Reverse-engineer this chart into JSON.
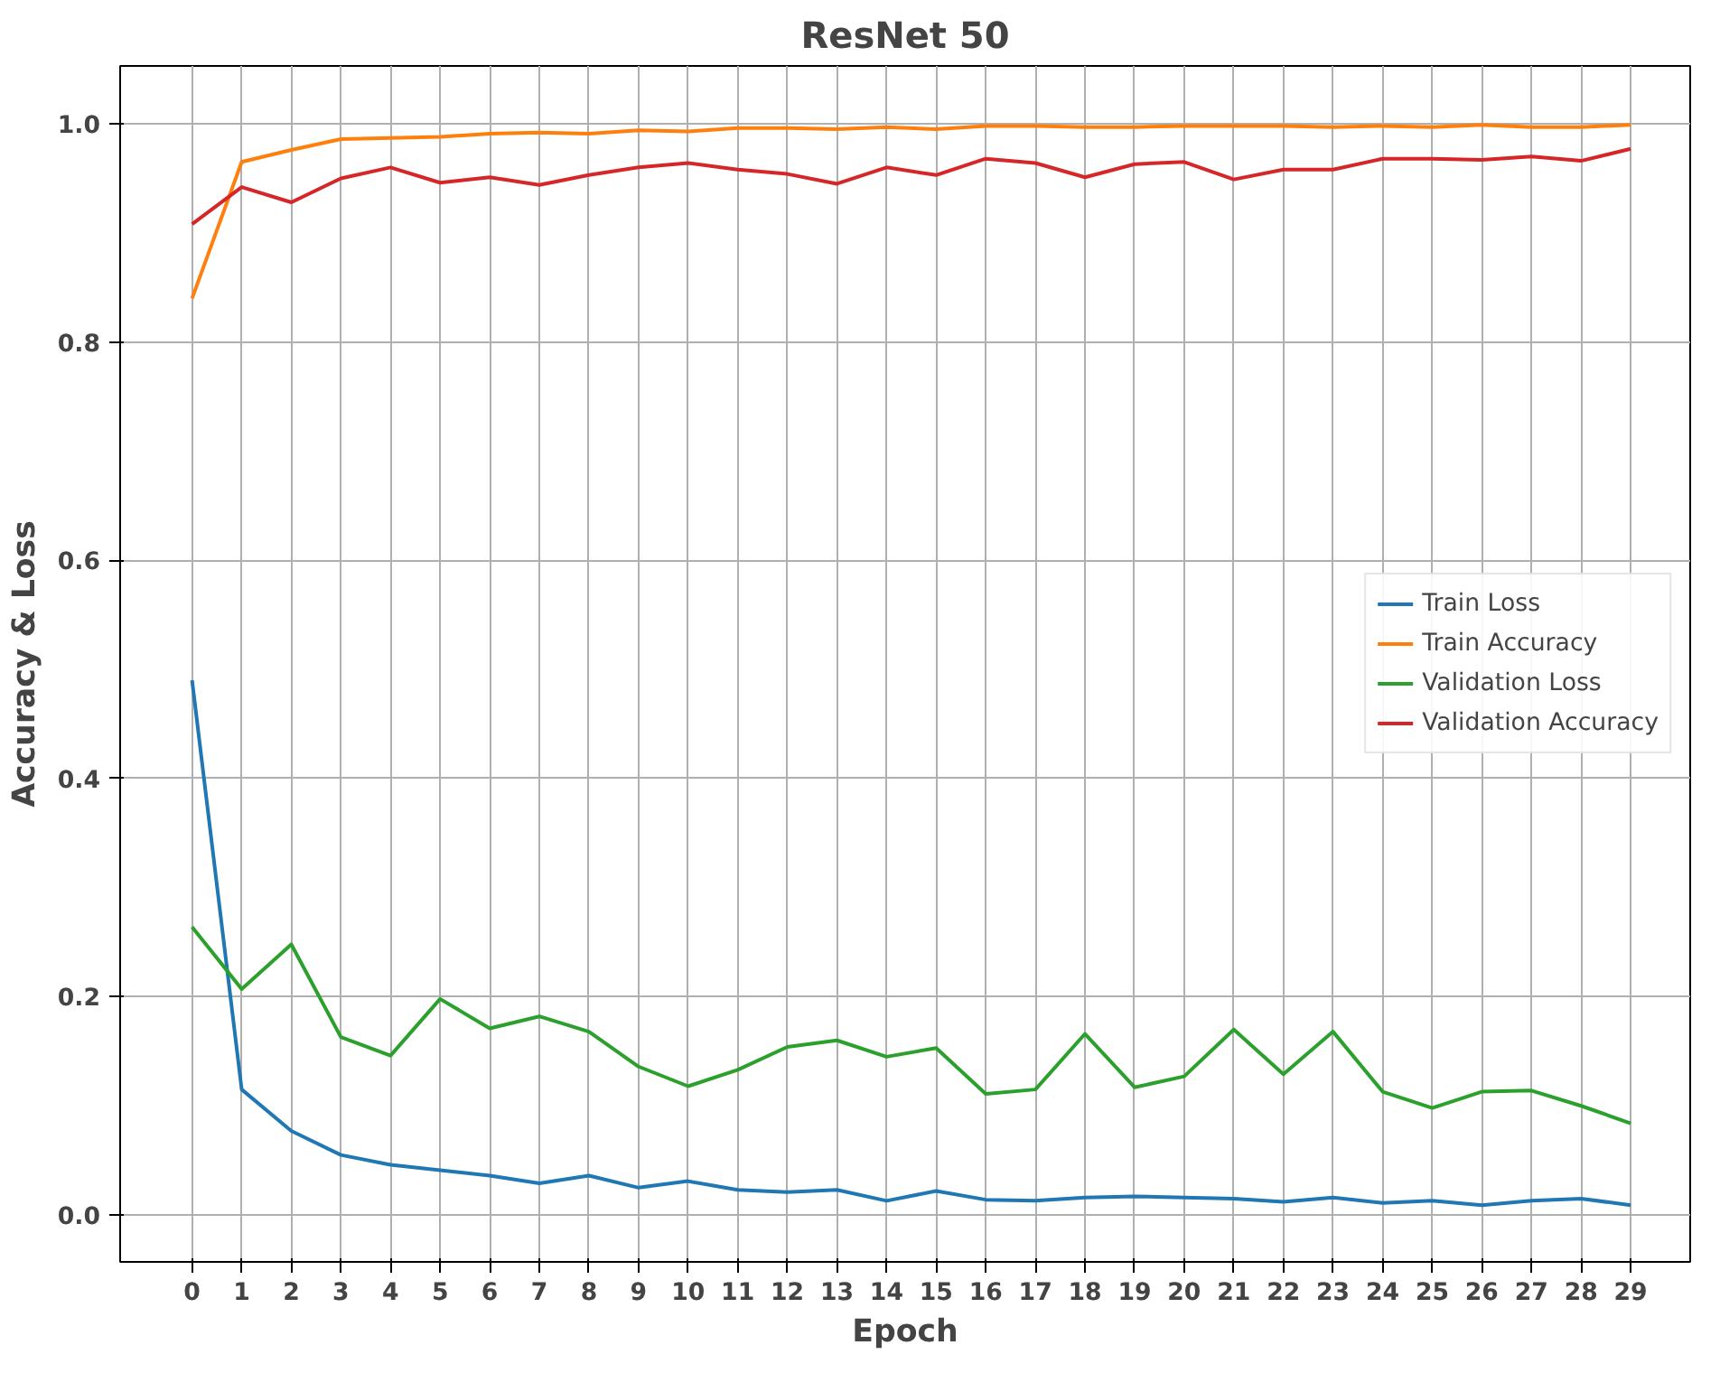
{
  "chart_data": {
    "type": "line",
    "title": "ResNet 50",
    "xlabel": "Epoch",
    "ylabel": "Accuracy & Loss",
    "x": [
      0,
      1,
      2,
      3,
      4,
      5,
      6,
      7,
      8,
      9,
      10,
      11,
      12,
      13,
      14,
      15,
      16,
      17,
      18,
      19,
      20,
      21,
      22,
      23,
      24,
      25,
      26,
      27,
      28,
      29
    ],
    "series": [
      {
        "name": "Train Loss",
        "color": "#1f77b4",
        "values": [
          0.49,
          0.115,
          0.077,
          0.055,
          0.046,
          0.041,
          0.036,
          0.029,
          0.036,
          0.025,
          0.031,
          0.023,
          0.021,
          0.023,
          0.013,
          0.022,
          0.014,
          0.013,
          0.016,
          0.017,
          0.016,
          0.015,
          0.012,
          0.016,
          0.011,
          0.013,
          0.009,
          0.013,
          0.015,
          0.009
        ]
      },
      {
        "name": "Train Accuracy",
        "color": "#ff7f0e",
        "values": [
          0.84,
          0.965,
          0.976,
          0.986,
          0.987,
          0.988,
          0.991,
          0.992,
          0.991,
          0.994,
          0.993,
          0.996,
          0.996,
          0.995,
          0.997,
          0.995,
          0.998,
          0.998,
          0.997,
          0.997,
          0.998,
          0.998,
          0.998,
          0.997,
          0.998,
          0.997,
          0.999,
          0.997,
          0.997,
          0.999
        ]
      },
      {
        "name": "Validation Loss",
        "color": "#2ca02c",
        "values": [
          0.264,
          0.207,
          0.248,
          0.163,
          0.146,
          0.198,
          0.171,
          0.182,
          0.168,
          0.136,
          0.118,
          0.133,
          0.154,
          0.16,
          0.145,
          0.153,
          0.111,
          0.115,
          0.166,
          0.117,
          0.127,
          0.17,
          0.129,
          0.168,
          0.113,
          0.098,
          0.113,
          0.114,
          0.1,
          0.084
        ]
      },
      {
        "name": "Validation Accuracy",
        "color": "#d62728",
        "values": [
          0.908,
          0.942,
          0.928,
          0.95,
          0.96,
          0.946,
          0.951,
          0.944,
          0.953,
          0.96,
          0.964,
          0.958,
          0.954,
          0.945,
          0.96,
          0.953,
          0.968,
          0.964,
          0.951,
          0.963,
          0.965,
          0.949,
          0.958,
          0.958,
          0.968,
          0.968,
          0.967,
          0.97,
          0.966,
          0.977
        ]
      }
    ],
    "xlim": [
      -1.45,
      30.2
    ],
    "ylim": [
      -0.043,
      1.053
    ],
    "xticks": [
      0,
      1,
      2,
      3,
      4,
      5,
      6,
      7,
      8,
      9,
      10,
      11,
      12,
      13,
      14,
      15,
      16,
      17,
      18,
      19,
      20,
      21,
      22,
      23,
      24,
      25,
      26,
      27,
      28,
      29
    ],
    "yticks": [
      {
        "value": 0,
        "label": "0.0"
      },
      {
        "value": 0.2,
        "label": "0.2"
      },
      {
        "value": 0.4,
        "label": "0.4"
      },
      {
        "value": 0.6,
        "label": "0.6"
      },
      {
        "value": 0.8,
        "label": "0.8"
      },
      {
        "value": 1,
        "label": "1.0"
      }
    ],
    "grid": true,
    "legend": "right",
    "marker": "none",
    "line_style": "solid"
  }
}
